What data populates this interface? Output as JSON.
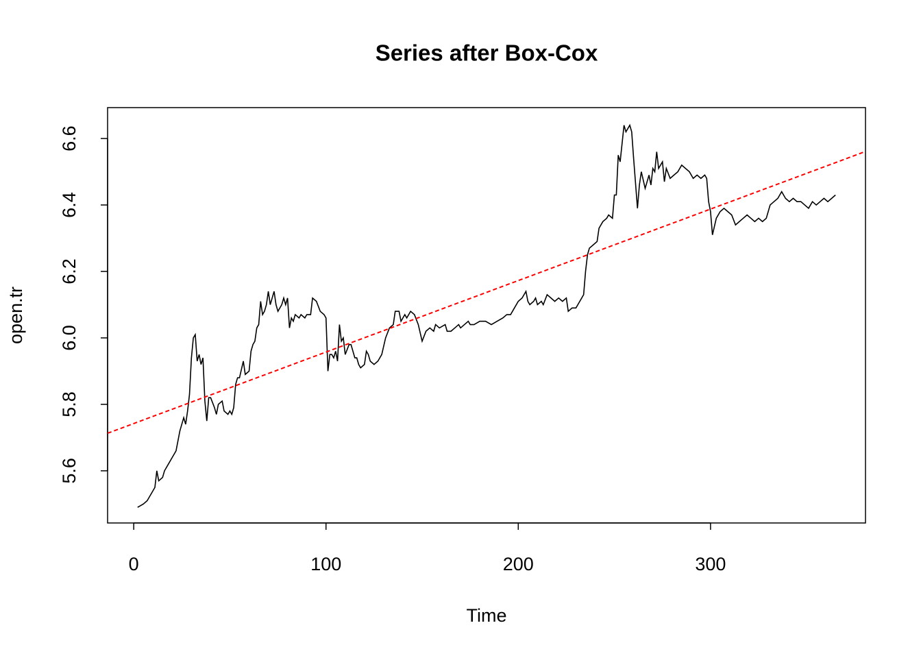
{
  "chart_data": {
    "type": "line",
    "title": "Series after Box-Cox",
    "x_label": "Time",
    "y_label": "open.tr",
    "xlim": [
      -13.6,
      380.6
    ],
    "ylim": [
      5.443,
      6.693
    ],
    "xticks": [
      0,
      100,
      200,
      300
    ],
    "yticks": [
      5.6,
      5.8,
      {
        "value": 6,
        "label": "6.0"
      },
      6.2,
      6.4,
      6.6
    ],
    "series": [
      {
        "color": "#000000",
        "dashed": false,
        "x": [
          2,
          5,
          7,
          10,
          11,
          12,
          13,
          15,
          16,
          18,
          20,
          22,
          24,
          26,
          27,
          28,
          29,
          30,
          31,
          32,
          33,
          34,
          35,
          36,
          37,
          38,
          39,
          40,
          42,
          43,
          44,
          46,
          47,
          49,
          50,
          51,
          52,
          53,
          54,
          55,
          57,
          58,
          60,
          61,
          62,
          63,
          64,
          65,
          66,
          67,
          68,
          69,
          70,
          71,
          72,
          73,
          74,
          75,
          77,
          78,
          79,
          80,
          81,
          82,
          83,
          84,
          86,
          87,
          89,
          90,
          92,
          93,
          95,
          97,
          99,
          100,
          101,
          102,
          103,
          104,
          105,
          106,
          107,
          108,
          109,
          110,
          112,
          113,
          115,
          116,
          117,
          118,
          120,
          121,
          122,
          123,
          125,
          127,
          129,
          131,
          133,
          135,
          136,
          138,
          139,
          141,
          142,
          144,
          146,
          148,
          150,
          152,
          154,
          156,
          157,
          159,
          162,
          163,
          165,
          167,
          169,
          170,
          172,
          174,
          175,
          177,
          180,
          183,
          186,
          189,
          192,
          194,
          196,
          198,
          200,
          202,
          204,
          205,
          206,
          208,
          209,
          210,
          212,
          213,
          215,
          217,
          219,
          221,
          223,
          225,
          226,
          228,
          230,
          232,
          234,
          235,
          236,
          237,
          239,
          241,
          242,
          244,
          246,
          247,
          249,
          250,
          251,
          252,
          253,
          255,
          256,
          258,
          259,
          260,
          262,
          263,
          264,
          266,
          268,
          269,
          270,
          271,
          272,
          273,
          275,
          276,
          277,
          279,
          281,
          283,
          285,
          287,
          289,
          291,
          293,
          295,
          297,
          298,
          299,
          300,
          301,
          303,
          305,
          307,
          309,
          311,
          313,
          315,
          317,
          319,
          321,
          323,
          325,
          327,
          329,
          331,
          333,
          335,
          337,
          339,
          341,
          343,
          345,
          347,
          349,
          351,
          353,
          355,
          357,
          359,
          361,
          363,
          365
        ],
        "values": [
          5.49,
          5.5,
          5.51,
          5.54,
          5.55,
          5.6,
          5.57,
          5.58,
          5.6,
          5.62,
          5.64,
          5.66,
          5.72,
          5.76,
          5.74,
          5.78,
          5.83,
          5.94,
          6.0,
          6.01,
          5.93,
          5.95,
          5.92,
          5.94,
          5.81,
          5.75,
          5.82,
          5.82,
          5.79,
          5.77,
          5.8,
          5.81,
          5.78,
          5.77,
          5.78,
          5.77,
          5.79,
          5.86,
          5.88,
          5.88,
          5.93,
          5.89,
          5.9,
          5.96,
          5.98,
          5.99,
          6.03,
          6.04,
          6.11,
          6.07,
          6.08,
          6.1,
          6.14,
          6.1,
          6.12,
          6.14,
          6.1,
          6.08,
          6.1,
          6.12,
          6.1,
          6.12,
          6.03,
          6.06,
          6.05,
          6.07,
          6.06,
          6.07,
          6.06,
          6.07,
          6.07,
          6.12,
          6.11,
          6.08,
          6.07,
          6.06,
          5.9,
          5.95,
          5.95,
          5.94,
          5.96,
          5.93,
          6.04,
          5.99,
          6.0,
          5.95,
          5.98,
          5.98,
          5.94,
          5.94,
          5.92,
          5.91,
          5.92,
          5.96,
          5.95,
          5.93,
          5.92,
          5.93,
          5.95,
          6.0,
          6.03,
          6.04,
          6.08,
          6.08,
          6.05,
          6.07,
          6.06,
          6.08,
          6.07,
          6.04,
          5.99,
          6.02,
          6.03,
          6.02,
          6.04,
          6.03,
          6.04,
          6.02,
          6.02,
          6.03,
          6.04,
          6.03,
          6.04,
          6.05,
          6.04,
          6.04,
          6.05,
          6.05,
          6.04,
          6.05,
          6.06,
          6.07,
          6.07,
          6.09,
          6.11,
          6.12,
          6.14,
          6.11,
          6.1,
          6.11,
          6.12,
          6.1,
          6.11,
          6.1,
          6.13,
          6.12,
          6.11,
          6.12,
          6.11,
          6.12,
          6.08,
          6.09,
          6.09,
          6.11,
          6.13,
          6.2,
          6.25,
          6.27,
          6.28,
          6.29,
          6.33,
          6.35,
          6.36,
          6.37,
          6.36,
          6.43,
          6.43,
          6.55,
          6.53,
          6.64,
          6.62,
          6.64,
          6.62,
          6.54,
          6.39,
          6.46,
          6.5,
          6.45,
          6.49,
          6.46,
          6.51,
          6.5,
          6.56,
          6.51,
          6.53,
          6.47,
          6.51,
          6.48,
          6.49,
          6.5,
          6.52,
          6.51,
          6.5,
          6.48,
          6.49,
          6.48,
          6.49,
          6.48,
          6.41,
          6.38,
          6.31,
          6.36,
          6.38,
          6.39,
          6.38,
          6.37,
          6.34,
          6.35,
          6.36,
          6.37,
          6.36,
          6.35,
          6.36,
          6.35,
          6.36,
          6.4,
          6.41,
          6.42,
          6.44,
          6.42,
          6.41,
          6.42,
          6.41,
          6.41,
          6.4,
          6.39,
          6.41,
          6.4,
          6.41,
          6.42,
          6.41,
          6.42,
          6.43
        ]
      },
      {
        "color": "#ff0000",
        "dashed": true,
        "x": [
          -13.6,
          380.6
        ],
        "values": [
          5.713,
          6.561
        ]
      }
    ]
  }
}
